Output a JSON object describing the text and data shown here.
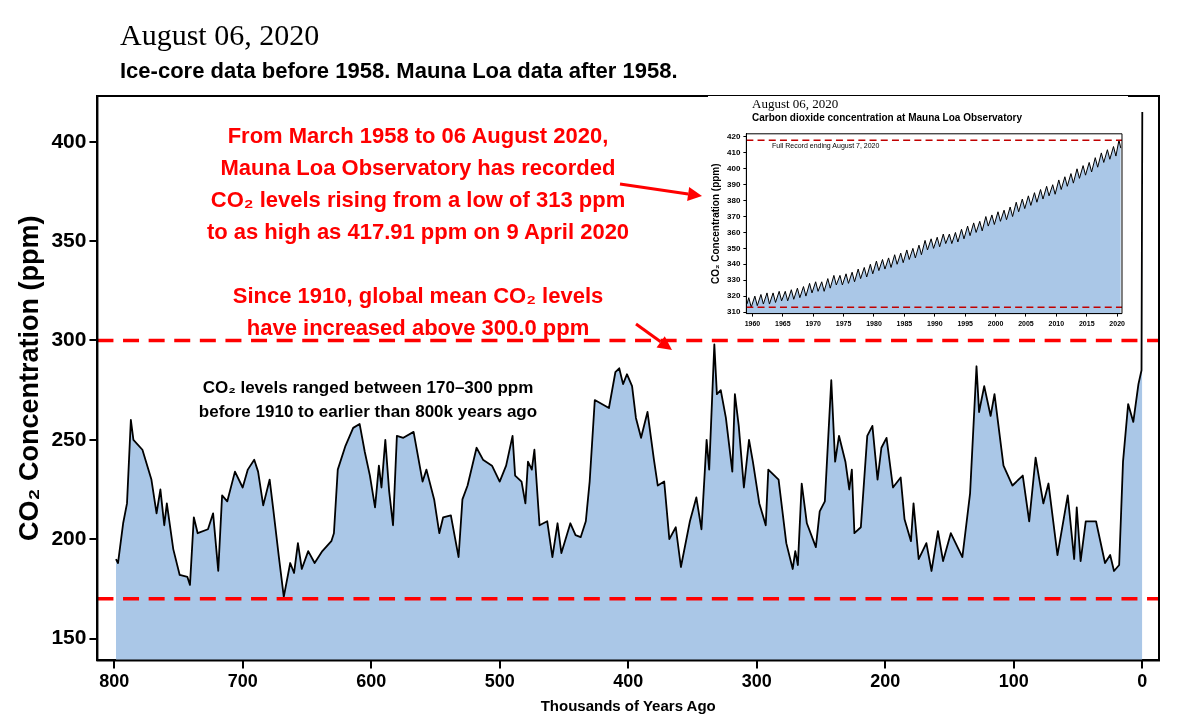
{
  "chart_data": [
    {
      "type": "area",
      "title": "August 06, 2020",
      "subtitle": "Ice-core data before 1958. Mauna Loa data after 1958.",
      "xlabel": "Thousands of Years Ago",
      "ylabel": "CO₂ Concentration (ppm)",
      "xlim": [
        813,
        -13
      ],
      "xticks": [
        800,
        700,
        600,
        500,
        400,
        300,
        200,
        100,
        0
      ],
      "ylim": [
        139,
        423
      ],
      "yticks": [
        150,
        200,
        250,
        300,
        350,
        400
      ],
      "grid": false,
      "series": [
        {
          "color": "#aac7e7",
          "x": [
            798.6,
            797,
            793,
            790,
            787,
            785,
            778,
            771,
            767,
            764,
            761,
            759,
            754,
            749,
            743,
            741,
            738,
            735,
            727,
            723,
            719,
            716,
            712,
            706,
            700,
            696,
            691,
            688,
            684,
            679,
            676,
            672,
            668,
            663,
            660,
            657,
            654,
            649,
            644,
            638,
            631,
            629,
            626,
            620,
            614,
            609,
            605,
            601,
            597,
            594,
            592,
            589,
            586,
            583,
            580,
            575,
            567,
            560,
            557,
            551,
            547,
            544,
            538,
            532,
            529,
            525,
            518,
            513,
            506,
            500,
            495,
            490,
            488,
            483,
            480,
            478,
            475,
            473,
            469,
            463,
            459,
            455,
            452,
            445,
            441,
            437,
            433,
            430,
            426,
            415,
            410,
            407,
            404,
            401,
            397,
            394,
            390,
            385,
            380,
            377,
            372,
            368,
            363,
            359,
            352,
            347,
            343,
            339,
            337,
            333,
            331,
            328,
            324,
            319,
            317,
            314,
            310,
            306,
            303,
            298,
            293,
            291,
            283,
            277,
            272,
            270,
            268,
            265,
            261,
            254,
            251,
            247,
            242,
            239,
            236,
            231,
            228,
            226,
            224,
            219,
            214,
            210,
            206,
            203,
            199,
            194,
            188,
            185,
            180,
            178,
            174,
            168,
            164,
            159,
            155,
            149,
            140,
            134,
            129,
            127,
            123,
            118,
            115,
            108,
            101,
            93,
            88,
            83,
            77,
            73,
            66,
            58,
            53,
            51,
            48,
            44,
            36,
            29,
            25,
            22,
            18,
            15,
            11,
            7,
            3,
            0.6,
            0
          ],
          "values": [
            190,
            188,
            208,
            218,
            260,
            250,
            245,
            230,
            213,
            225,
            207,
            218,
            195,
            182,
            181,
            177,
            211,
            203,
            205,
            213,
            184,
            222,
            219,
            234,
            226,
            235,
            240,
            234,
            217,
            230,
            214,
            192,
            171,
            188,
            183,
            198,
            185,
            194,
            188,
            194,
            199,
            203,
            235,
            247,
            256,
            258,
            244,
            232,
            216,
            237,
            226,
            250,
            224,
            207,
            252,
            251,
            254,
            229,
            235,
            220,
            203,
            211,
            212,
            191,
            220,
            227,
            246,
            240,
            237,
            229,
            237,
            252,
            232,
            229,
            218,
            239,
            235,
            245,
            207,
            209,
            191,
            208,
            193,
            208,
            202,
            201,
            209,
            229,
            270,
            266,
            284,
            286,
            278,
            283,
            277,
            261,
            251,
            264,
            240,
            227,
            229,
            200,
            206,
            186,
            209,
            221,
            205,
            250,
            235,
            298,
            273,
            275,
            261,
            234,
            273,
            257,
            226,
            250,
            239,
            218,
            207,
            235,
            230,
            198,
            185,
            194,
            187,
            228,
            208,
            196,
            214,
            219,
            280,
            239,
            252,
            239,
            225,
            235,
            203,
            206,
            252,
            257,
            230,
            246,
            251,
            226,
            231,
            210,
            199,
            218,
            190,
            198,
            184,
            204,
            189,
            203,
            191,
            223,
            287,
            264,
            277,
            262,
            273,
            237,
            227,
            232,
            209,
            241,
            218,
            228,
            192,
            222,
            190,
            216,
            189,
            209,
            209,
            188,
            192,
            184,
            187,
            239,
            268,
            259,
            278,
            285,
            415
          ]
        }
      ],
      "ref_lines": [
        {
          "axis": "y",
          "value": 300,
          "color": "#ff0000",
          "line_style": "dashed"
        },
        {
          "axis": "y",
          "value": 170,
          "color": "#ff0000",
          "line_style": "dashed"
        }
      ],
      "annotations": [
        "From March 1958 to 06 August 2020,\nMauna Loa Observatory has recorded\nCO₂ levels rising from a low of 313 ppm\nto as high as 417.91 ppm on 9 April 2020",
        "Since 1910, global mean CO₂ levels\nhave increased above 300.0 ppm",
        "CO₂ levels ranged between 170–300 ppm\nbefore 1910 to earlier than 800k years ago"
      ]
    },
    {
      "type": "area",
      "title": "August 06, 2020",
      "subtitle": "Carbon dioxide concentration at Mauna Loa Observatory",
      "ylabel": "CO₂ Concentration (ppm)",
      "xlim": [
        1959,
        2020.8
      ],
      "xticks": [
        1960,
        1965,
        1970,
        1975,
        1980,
        1985,
        1990,
        1995,
        2000,
        2005,
        2010,
        2015,
        2020
      ],
      "ylim": [
        309,
        422
      ],
      "yticks": [
        310,
        320,
        330,
        340,
        350,
        360,
        370,
        380,
        390,
        400,
        410,
        420
      ],
      "grid": false,
      "series": [
        {
          "color": "#aac7e7",
          "x": [
            1959.1,
            1959.4,
            1959.8,
            1960.4,
            1960.8,
            1961.4,
            1961.8,
            1962.4,
            1962.8,
            1963.4,
            1963.8,
            1964.4,
            1964.8,
            1965.4,
            1965.8,
            1966.4,
            1966.8,
            1967.4,
            1967.8,
            1968.4,
            1968.8,
            1969.4,
            1969.8,
            1970.4,
            1970.8,
            1971.4,
            1971.8,
            1972.4,
            1972.8,
            1973.4,
            1973.8,
            1974.4,
            1974.8,
            1975.4,
            1975.8,
            1976.4,
            1976.8,
            1977.4,
            1977.8,
            1978.4,
            1978.8,
            1979.4,
            1979.8,
            1980.4,
            1980.8,
            1981.4,
            1981.8,
            1982.4,
            1982.8,
            1983.4,
            1983.8,
            1984.4,
            1984.8,
            1985.4,
            1985.8,
            1986.4,
            1986.8,
            1987.4,
            1987.8,
            1988.4,
            1988.8,
            1989.4,
            1989.8,
            1990.4,
            1990.8,
            1991.4,
            1991.8,
            1992.4,
            1992.8,
            1993.4,
            1993.8,
            1994.4,
            1994.8,
            1995.4,
            1995.8,
            1996.4,
            1996.8,
            1997.4,
            1997.8,
            1998.4,
            1998.8,
            1999.4,
            1999.8,
            2000.4,
            2000.8,
            2001.4,
            2001.8,
            2002.4,
            2002.8,
            2003.4,
            2003.8,
            2004.4,
            2004.8,
            2005.4,
            2005.8,
            2006.4,
            2006.8,
            2007.4,
            2007.8,
            2008.4,
            2008.8,
            2009.4,
            2009.8,
            2010.4,
            2010.8,
            2011.4,
            2011.8,
            2012.4,
            2012.8,
            2013.4,
            2013.8,
            2014.4,
            2014.8,
            2015.4,
            2015.8,
            2016.4,
            2016.8,
            2017.4,
            2017.8,
            2018.4,
            2018.8,
            2019.4,
            2019.8,
            2020.3,
            2020.6
          ],
          "values": [
            315,
            319,
            313,
            320,
            314,
            321,
            315,
            322,
            315,
            322,
            316,
            323,
            317,
            323,
            317,
            324,
            318,
            325,
            319,
            326,
            320,
            328,
            322,
            329,
            323,
            329,
            323,
            331,
            325,
            333,
            327,
            333,
            327,
            334,
            328,
            335,
            329,
            337,
            331,
            338,
            332,
            340,
            334,
            342,
            336,
            343,
            337,
            344,
            338,
            346,
            340,
            347,
            341,
            349,
            343,
            350,
            344,
            352,
            346,
            355,
            349,
            356,
            350,
            357,
            351,
            359,
            353,
            359,
            353,
            360,
            354,
            362,
            356,
            364,
            358,
            366,
            360,
            367,
            361,
            370,
            364,
            371,
            365,
            373,
            367,
            374,
            368,
            376,
            370,
            379,
            373,
            381,
            375,
            383,
            377,
            385,
            379,
            387,
            381,
            389,
            383,
            390,
            384,
            393,
            387,
            395,
            389,
            397,
            391,
            400,
            394,
            402,
            396,
            404,
            398,
            407,
            401,
            410,
            404,
            412,
            406,
            414,
            408,
            418,
            413
          ]
        }
      ],
      "ref_lines": [
        {
          "axis": "y",
          "value": 417.91,
          "color": "#c00000",
          "line_style": "dashed"
        },
        {
          "axis": "y",
          "value": 313,
          "color": "#c00000",
          "line_style": "dashed"
        }
      ],
      "annotations": [
        "Full Record ending August 7, 2020"
      ]
    }
  ]
}
